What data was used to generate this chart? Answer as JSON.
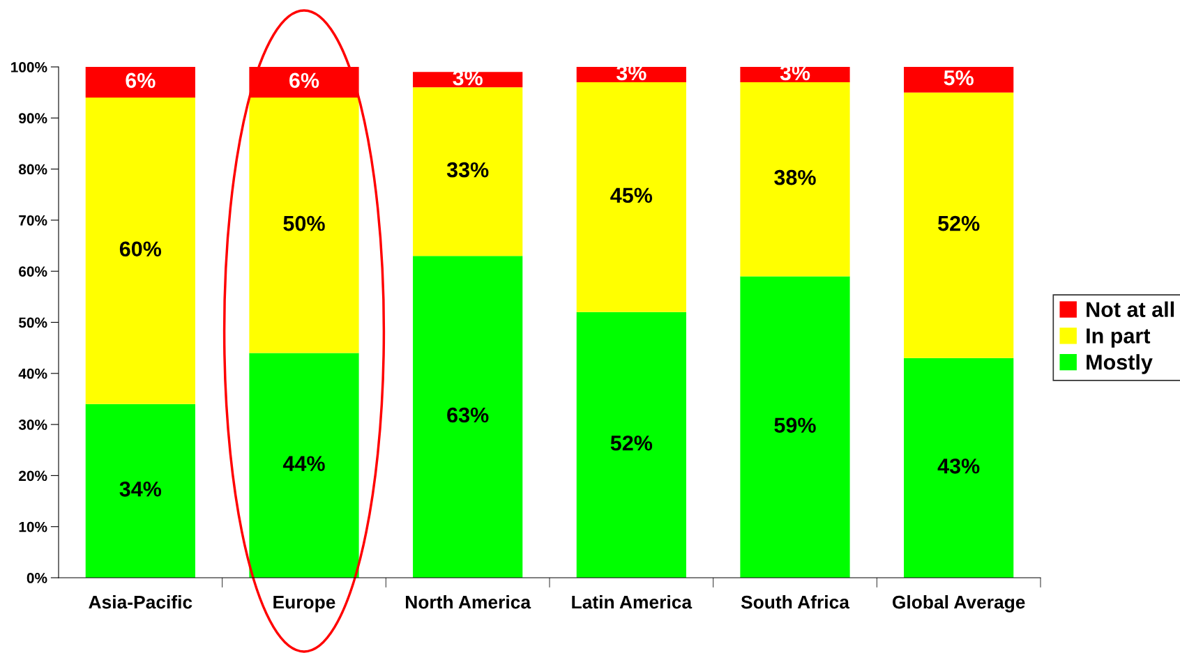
{
  "chart_data": {
    "type": "bar",
    "stacked": true,
    "categories": [
      "Asia-Pacific",
      "Europe",
      "North America",
      "Latin America",
      "South Africa",
      "Global Average"
    ],
    "series": [
      {
        "name": "Mostly",
        "color": "#00ff00",
        "values": [
          34,
          44,
          63,
          52,
          59,
          43
        ],
        "value_labels": [
          "34%",
          "44%",
          "63%",
          "52%",
          "59%",
          "43%"
        ]
      },
      {
        "name": "In part",
        "color": "#ffff00",
        "values": [
          60,
          50,
          33,
          45,
          38,
          52
        ],
        "value_labels": [
          "60%",
          "50%",
          "33%",
          "45%",
          "38%",
          "52%"
        ]
      },
      {
        "name": "Not at all",
        "color": "#ff0000",
        "values": [
          6,
          6,
          3,
          3,
          3,
          5
        ],
        "value_labels": [
          "6%",
          "6%",
          "3%",
          "3%",
          "3%",
          "5%"
        ]
      }
    ],
    "ylim": [
      0,
      100
    ],
    "yticks": [
      {
        "value": 0,
        "label": "0%"
      },
      {
        "value": 10,
        "label": "10%"
      },
      {
        "value": 20,
        "label": "20%"
      },
      {
        "value": 30,
        "label": "30%"
      },
      {
        "value": 40,
        "label": "40%"
      },
      {
        "value": 50,
        "label": "50%"
      },
      {
        "value": 60,
        "label": "60%"
      },
      {
        "value": 70,
        "label": "70%"
      },
      {
        "value": 80,
        "label": "80%"
      },
      {
        "value": 90,
        "label": "90%"
      },
      {
        "value": 100,
        "label": "100%"
      }
    ],
    "grid": false,
    "legend": "right"
  }
}
